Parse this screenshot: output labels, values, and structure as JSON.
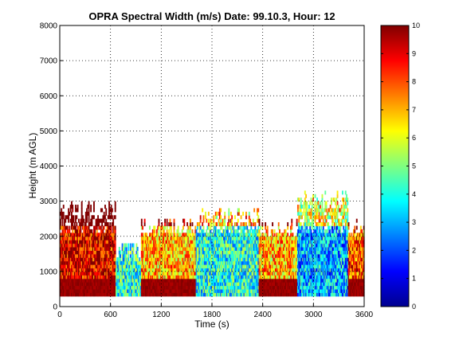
{
  "chart_data": {
    "type": "heatmap",
    "title": "OPRA Spectral Width (m/s)  Date: 99.10.3, Hour: 12",
    "xlabel": "Time (s)",
    "ylabel": "Height (m AGL)",
    "xlim": [
      0,
      3600
    ],
    "ylim": [
      0,
      8000
    ],
    "x_ticks": [
      0,
      600,
      1200,
      1800,
      2400,
      3000,
      3600
    ],
    "y_ticks": [
      0,
      1000,
      2000,
      3000,
      4000,
      5000,
      6000,
      7000,
      8000
    ],
    "grid": "dotted",
    "colorbar": {
      "range": [
        0,
        10
      ],
      "ticks": [
        0,
        1,
        2,
        3,
        4,
        5,
        6,
        7,
        8,
        9,
        10
      ],
      "colormap": "jet"
    },
    "data_extent": {
      "height_min_m": 300,
      "height_top_typical_m": 2500,
      "height_top_max_m": 3300
    },
    "regions": [
      {
        "time": [
          0,
          650
        ],
        "height": [
          300,
          3000
        ],
        "width_ms": 9
      },
      {
        "time": [
          550,
          950
        ],
        "height": [
          300,
          1800
        ],
        "width_ms": 4
      },
      {
        "time": [
          950,
          1600
        ],
        "height": [
          300,
          2500
        ],
        "width_ms": 7
      },
      {
        "time": [
          1550,
          2350
        ],
        "height": [
          300,
          2800
        ],
        "width_ms": 4
      },
      {
        "time": [
          2350,
          2800
        ],
        "height": [
          300,
          2500
        ],
        "width_ms": 7
      },
      {
        "time": [
          2800,
          3400
        ],
        "height": [
          300,
          3300
        ],
        "width_ms": 3
      },
      {
        "time": [
          3400,
          3600
        ],
        "height": [
          300,
          2500
        ],
        "width_ms": 8
      }
    ]
  }
}
